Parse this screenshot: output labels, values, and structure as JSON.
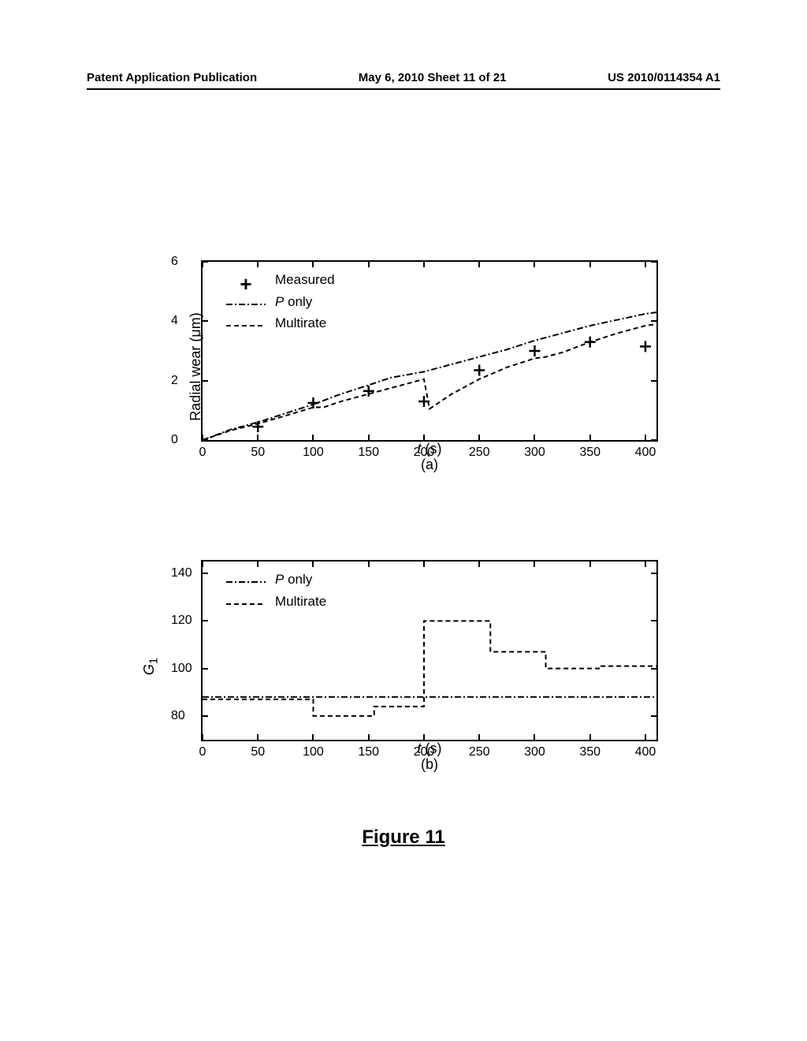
{
  "header": {
    "left": "Patent Application Publication",
    "center": "May 6, 2010  Sheet 11 of 21",
    "right": "US 2010/0114354 A1"
  },
  "figure_title": "Figure 11",
  "chart_a": {
    "type": "line-scatter",
    "ylabel": "Radial wear (μm)",
    "xlabel_plain": "t (s)",
    "xlabel_italic": "t",
    "xlabel_rest": " (s)",
    "subplot_label": "(a)",
    "xlim": [
      0,
      410
    ],
    "ylim": [
      0,
      6
    ],
    "xticks": [
      0,
      50,
      100,
      150,
      200,
      250,
      300,
      350,
      400
    ],
    "yticks": [
      0,
      2,
      4,
      6
    ],
    "background_color": "#ffffff",
    "axis_color": "#000000",
    "series_measured": {
      "label": "Measured",
      "marker": "+",
      "marker_color": "#000000",
      "marker_size": 14,
      "points": [
        [
          50,
          0.45
        ],
        [
          100,
          1.25
        ],
        [
          150,
          1.65
        ],
        [
          200,
          1.3
        ],
        [
          250,
          2.35
        ],
        [
          300,
          3.0
        ],
        [
          350,
          3.3
        ],
        [
          400,
          3.15
        ]
      ]
    },
    "series_ponly": {
      "label_italic": "P",
      "label_rest": " only",
      "line_style": "dashdot",
      "line_color": "#000000",
      "line_width": 2,
      "points": [
        [
          0,
          0
        ],
        [
          25,
          0.35
        ],
        [
          50,
          0.6
        ],
        [
          75,
          0.9
        ],
        [
          100,
          1.2
        ],
        [
          125,
          1.55
        ],
        [
          150,
          1.85
        ],
        [
          170,
          2.1
        ],
        [
          200,
          2.3
        ],
        [
          225,
          2.55
        ],
        [
          250,
          2.8
        ],
        [
          275,
          3.05
        ],
        [
          300,
          3.35
        ],
        [
          325,
          3.6
        ],
        [
          350,
          3.85
        ],
        [
          375,
          4.05
        ],
        [
          400,
          4.25
        ],
        [
          410,
          4.3
        ]
      ]
    },
    "series_multirate": {
      "label": "Multirate",
      "line_style": "dash",
      "line_color": "#000000",
      "line_width": 2,
      "points": [
        [
          0,
          0
        ],
        [
          25,
          0.32
        ],
        [
          50,
          0.55
        ],
        [
          75,
          0.82
        ],
        [
          100,
          1.1
        ],
        [
          110,
          1.11
        ],
        [
          125,
          1.3
        ],
        [
          150,
          1.55
        ],
        [
          175,
          1.8
        ],
        [
          200,
          2.05
        ],
        [
          205,
          1.05
        ],
        [
          225,
          1.55
        ],
        [
          250,
          2.05
        ],
        [
          275,
          2.45
        ],
        [
          300,
          2.75
        ],
        [
          310,
          2.8
        ],
        [
          325,
          2.95
        ],
        [
          350,
          3.3
        ],
        [
          375,
          3.6
        ],
        [
          400,
          3.85
        ],
        [
          410,
          3.9
        ]
      ]
    }
  },
  "chart_b": {
    "type": "line-step",
    "ylabel_plain": "G₁",
    "ylabel_italic": "G",
    "ylabel_sub": "1",
    "xlabel_italic": "t",
    "xlabel_rest": " (s)",
    "subplot_label": "(b)",
    "xlim": [
      0,
      410
    ],
    "ylim": [
      70,
      145
    ],
    "xticks": [
      0,
      50,
      100,
      150,
      200,
      250,
      300,
      350,
      400
    ],
    "yticks": [
      80,
      100,
      120,
      140
    ],
    "background_color": "#ffffff",
    "axis_color": "#000000",
    "series_ponly": {
      "label_italic": "P",
      "label_rest": " only",
      "line_style": "dashdot",
      "line_color": "#000000",
      "line_width": 2,
      "points": [
        [
          0,
          88
        ],
        [
          410,
          88
        ]
      ]
    },
    "series_multirate": {
      "label": "Multirate",
      "line_style": "dash",
      "line_color": "#000000",
      "line_width": 2,
      "points": [
        [
          0,
          87
        ],
        [
          100,
          87
        ],
        [
          100,
          80
        ],
        [
          155,
          80
        ],
        [
          155,
          84
        ],
        [
          200,
          84
        ],
        [
          200,
          120
        ],
        [
          260,
          120
        ],
        [
          260,
          107
        ],
        [
          310,
          107
        ],
        [
          310,
          100
        ],
        [
          360,
          100
        ],
        [
          360,
          101
        ],
        [
          410,
          101
        ]
      ]
    }
  },
  "colors": {
    "text": "#000000",
    "axis": "#000000",
    "background": "#ffffff"
  }
}
